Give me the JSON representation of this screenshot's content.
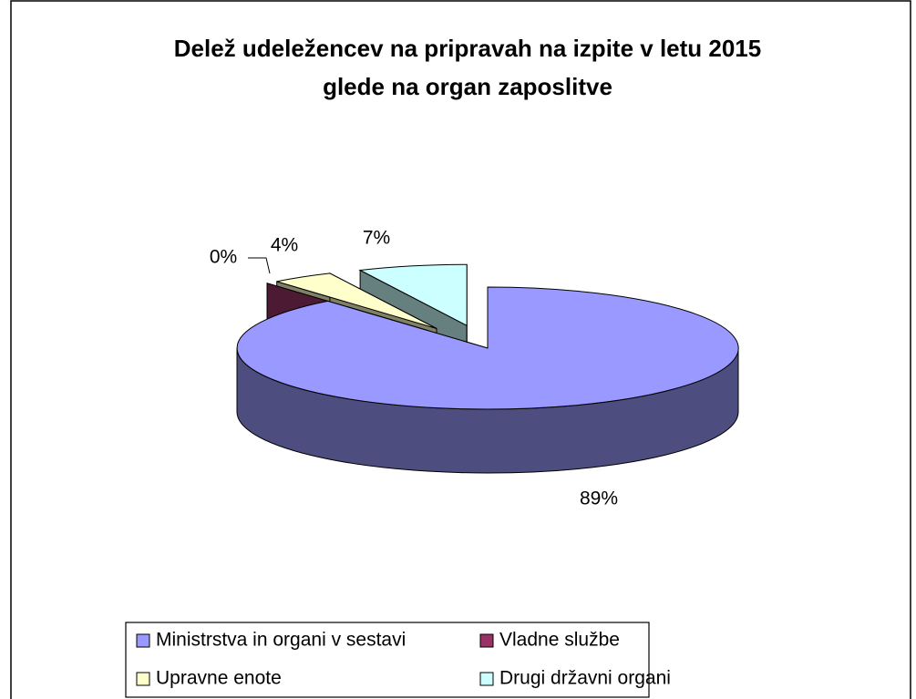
{
  "chart_data": {
    "type": "pie3d",
    "title": [
      "Delež udeležencev na pripravah na izpite v letu 2015",
      "glede na organ zaposlitve"
    ],
    "categories": [
      "Ministrstva in organi v sestavi",
      "Vladne službe",
      "Upravne enote",
      "Drugi državni organi"
    ],
    "values": [
      89,
      0,
      4,
      7
    ],
    "value_labels": [
      "89%",
      "0%",
      "4%",
      "7%"
    ],
    "colors": [
      "#9999ff",
      "#993366",
      "#ffffcc",
      "#ccffff"
    ],
    "legend": "bottom"
  }
}
